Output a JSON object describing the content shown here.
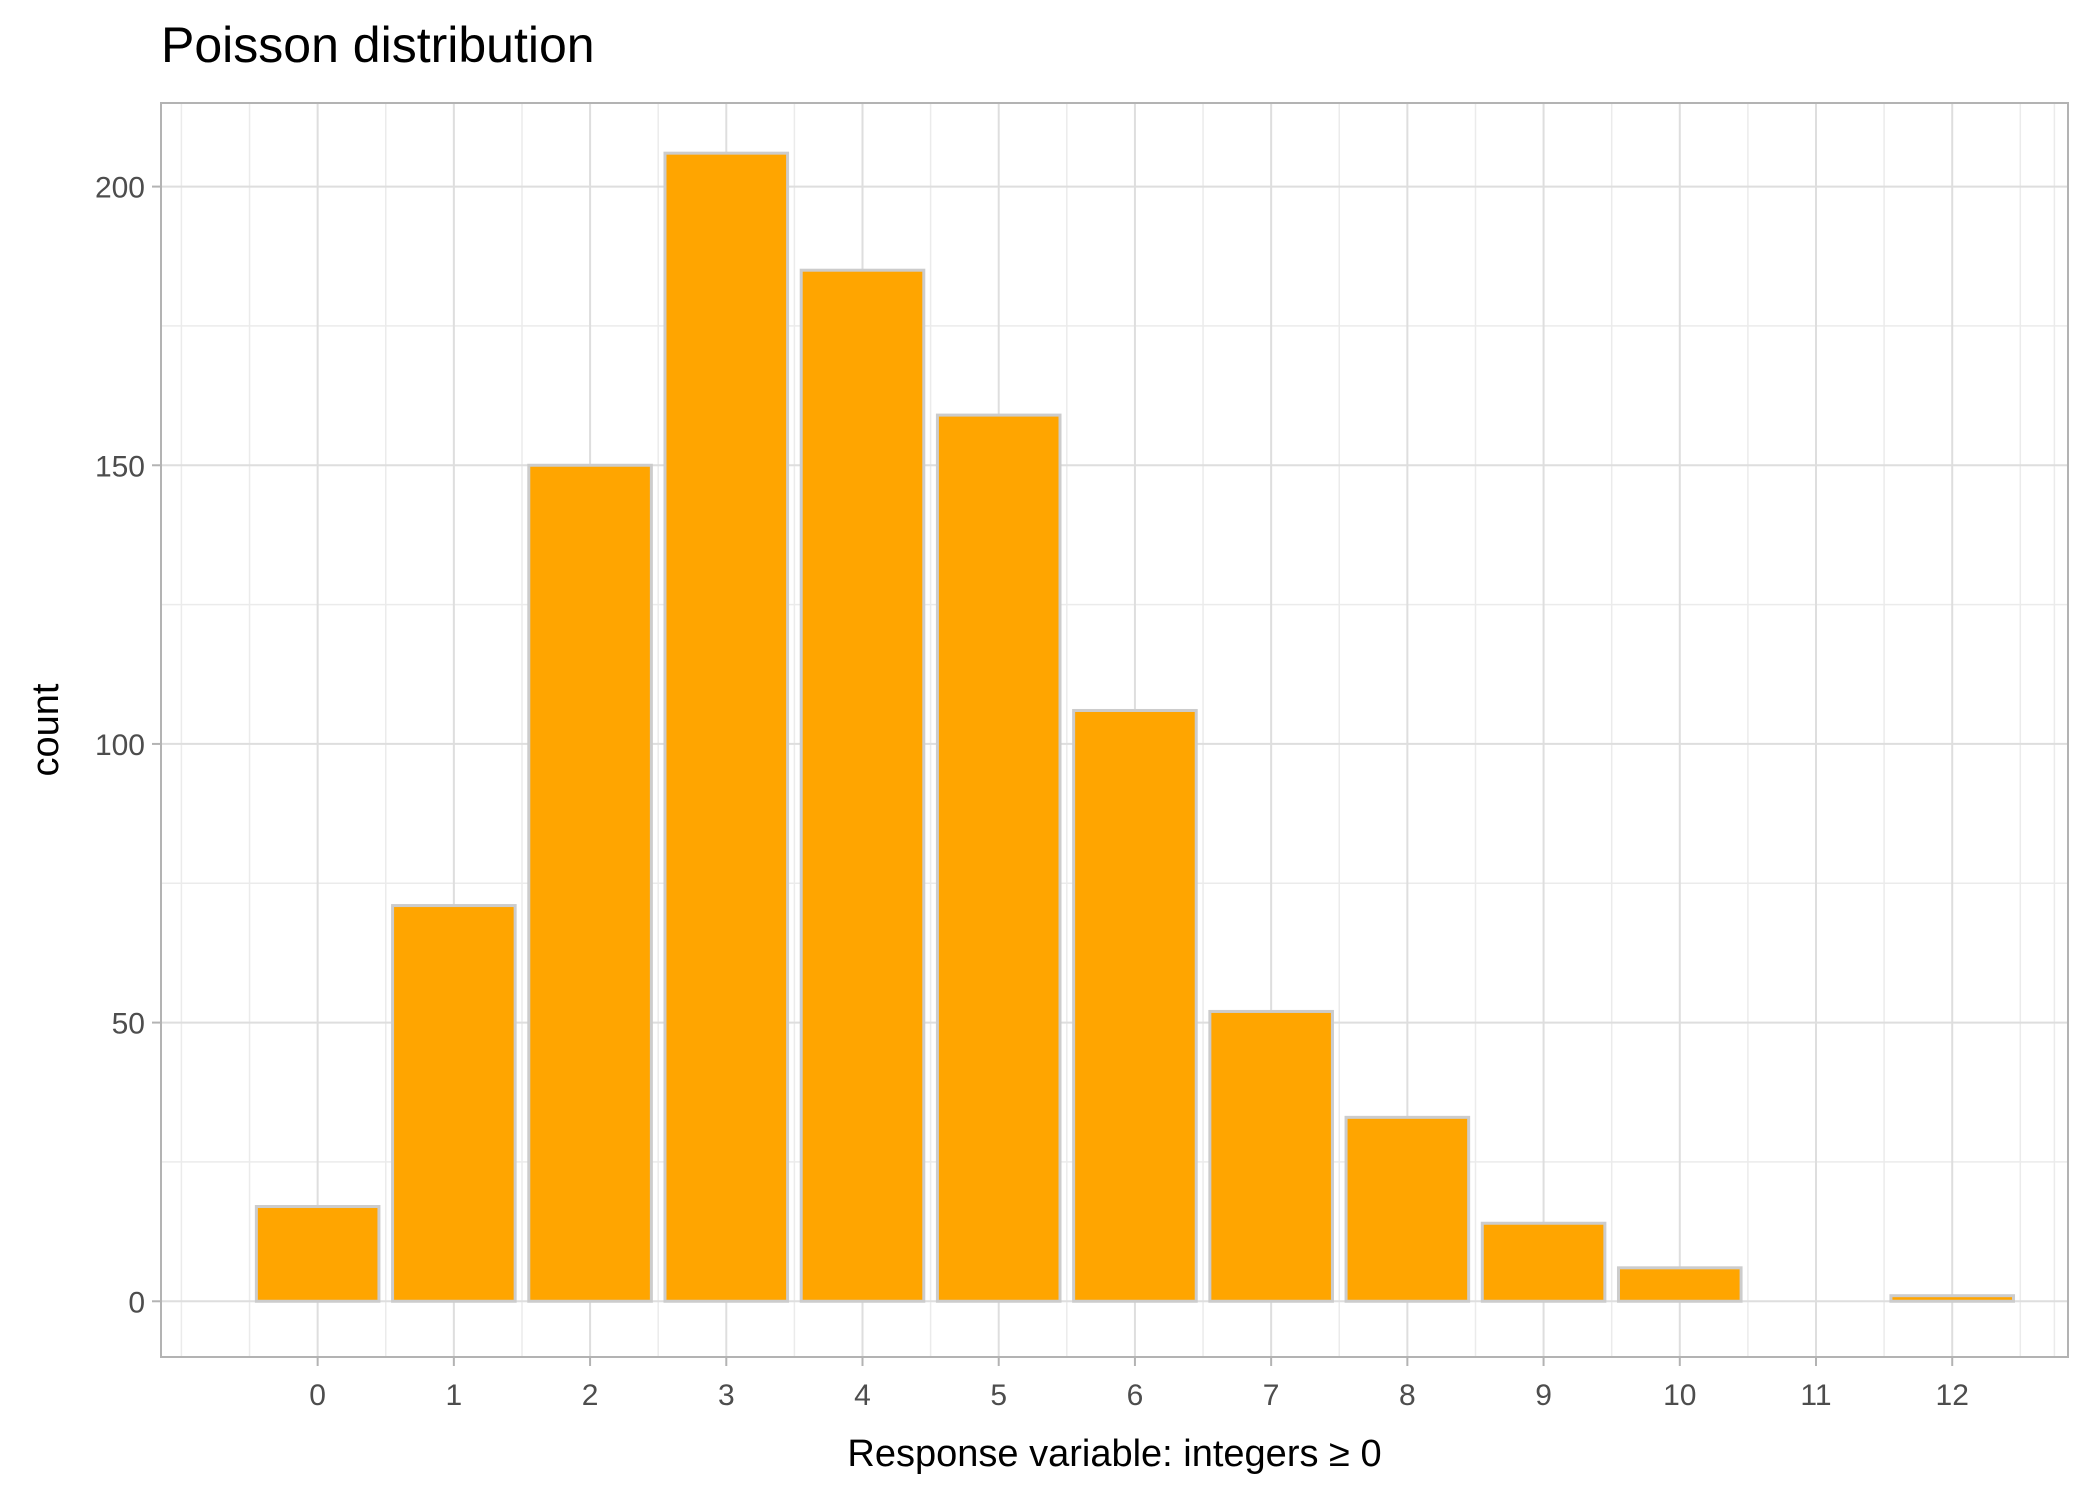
{
  "chart_data": {
    "type": "bar",
    "title": "Poisson distribution",
    "xlabel": "Response variable: integers ≥ 0",
    "ylabel": "count",
    "categories": [
      "0",
      "1",
      "2",
      "3",
      "4",
      "5",
      "6",
      "7",
      "8",
      "9",
      "10",
      "11",
      "12"
    ],
    "values": [
      17,
      71,
      150,
      206,
      185,
      159,
      106,
      52,
      33,
      14,
      6,
      0,
      1
    ],
    "ylim": [
      -10,
      215
    ],
    "xlim": [
      -1.15,
      12.85
    ],
    "y_ticks": [
      0,
      50,
      100,
      150,
      200
    ],
    "y_minor_ticks": [
      25,
      75,
      125,
      175
    ],
    "x_ticks": [
      0,
      1,
      2,
      3,
      4,
      5,
      6,
      7,
      8,
      9,
      10,
      11,
      12
    ],
    "grid": true,
    "legend": null,
    "bar_fill": "#FFA500",
    "bar_outline": "#CCCCCC",
    "gridline_color": "#DEDEDE",
    "panel_border_color": "#B3B3B3"
  }
}
